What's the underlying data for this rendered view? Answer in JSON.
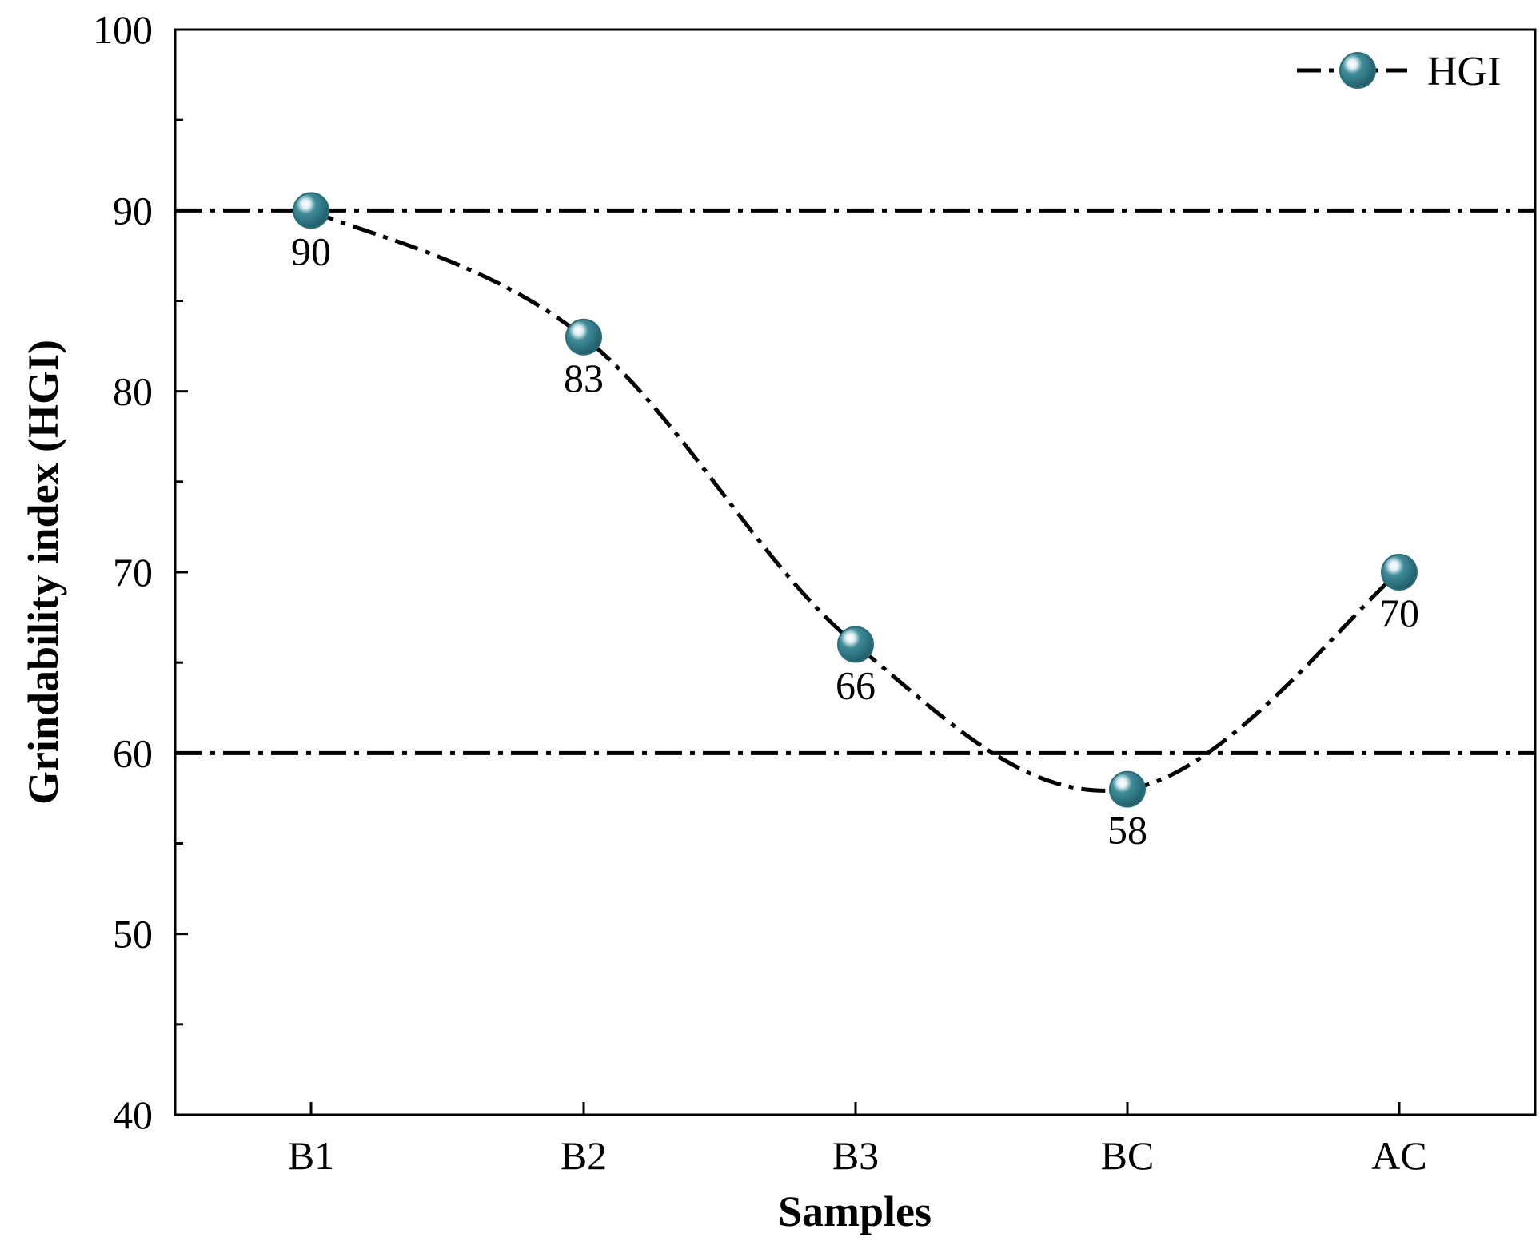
{
  "chart_data": {
    "type": "line",
    "title": "",
    "xlabel": "Samples",
    "ylabel": "Grindability index (HGI)",
    "categories": [
      "B1",
      "B2",
      "B3",
      "BC",
      "AC"
    ],
    "series": [
      {
        "name": "HGI",
        "values": [
          90,
          83,
          66,
          58,
          70
        ],
        "color": "#2f7c8a",
        "line_style": "dash-dot",
        "marker": "circle"
      }
    ],
    "data_labels": [
      "90",
      "83",
      "66",
      "58",
      "70"
    ],
    "ylim": [
      40,
      100
    ],
    "y_major_ticks": [
      40,
      50,
      60,
      70,
      80,
      90,
      100
    ],
    "y_minor_ticks": [
      45,
      55,
      65,
      75,
      85,
      95
    ],
    "reference_lines": [
      {
        "y": 90,
        "style": "dash-dot"
      },
      {
        "y": 60,
        "style": "dash-dot"
      }
    ],
    "legend": {
      "position": "top-right",
      "entries": [
        "HGI"
      ]
    },
    "grid": false
  }
}
